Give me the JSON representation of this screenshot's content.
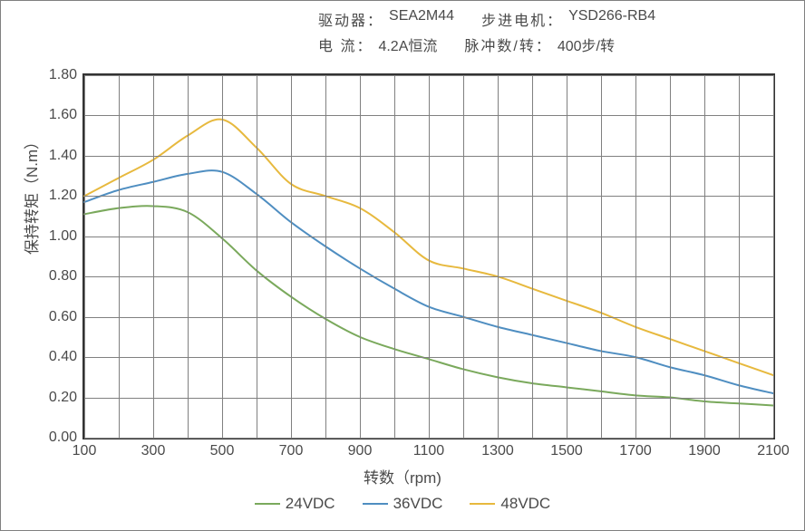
{
  "header": {
    "driver_label": "驱动器：",
    "driver_value": "SEA2M44",
    "motor_label": "步进电机：",
    "motor_value": "YSD266-RB4",
    "current_label": "电    流：",
    "current_value": "4.2A恒流",
    "pulse_label": "脉冲数/转：",
    "pulse_value": "400步/转"
  },
  "chart": {
    "type": "line",
    "background_color": "#ffffff",
    "border_color": "#333333",
    "grid_color": "#808080",
    "line_width": 2,
    "xlim": [
      100,
      2100
    ],
    "ylim": [
      0.0,
      1.8
    ],
    "xtick_positions": [
      100,
      300,
      500,
      700,
      900,
      1100,
      1300,
      1500,
      1700,
      1900,
      2100
    ],
    "xtick_labels": [
      "100",
      "300",
      "500",
      "700",
      "900",
      "1100",
      "1300",
      "1500",
      "1700",
      "1900",
      "2100"
    ],
    "ytick_positions": [
      0.0,
      0.2,
      0.4,
      0.6,
      0.8,
      1.0,
      1.2,
      1.4,
      1.6,
      1.8
    ],
    "ytick_labels": [
      "0.00",
      "0.20",
      "0.40",
      "0.60",
      "0.80",
      "1.00",
      "1.20",
      "1.40",
      "1.60",
      "1.80"
    ],
    "x_axis_title": "转数（rpm)",
    "y_axis_title": "保持转矩（N.m）",
    "x_gridlines": [
      100,
      200,
      300,
      400,
      500,
      600,
      700,
      800,
      900,
      1000,
      1100,
      1200,
      1300,
      1400,
      1500,
      1600,
      1700,
      1800,
      1900,
      2000,
      2100
    ],
    "y_gridlines": [
      0.0,
      0.2,
      0.4,
      0.6,
      0.8,
      1.0,
      1.2,
      1.4,
      1.6,
      1.8
    ],
    "series": [
      {
        "name": "24VDC",
        "color": "#7aa95c",
        "x": [
          100,
          200,
          300,
          400,
          500,
          600,
          700,
          800,
          900,
          1000,
          1100,
          1200,
          1300,
          1400,
          1500,
          1600,
          1700,
          1800,
          1900,
          2000,
          2100
        ],
        "y": [
          1.11,
          1.14,
          1.15,
          1.12,
          0.99,
          0.83,
          0.7,
          0.59,
          0.5,
          0.44,
          0.39,
          0.34,
          0.3,
          0.27,
          0.25,
          0.23,
          0.21,
          0.2,
          0.18,
          0.17,
          0.16
        ]
      },
      {
        "name": "36VDC",
        "color": "#4f8ec1",
        "x": [
          100,
          200,
          300,
          400,
          500,
          600,
          700,
          800,
          900,
          1000,
          1100,
          1200,
          1300,
          1400,
          1500,
          1600,
          1700,
          1800,
          1900,
          2000,
          2100
        ],
        "y": [
          1.17,
          1.23,
          1.27,
          1.31,
          1.32,
          1.21,
          1.07,
          0.95,
          0.84,
          0.74,
          0.65,
          0.6,
          0.55,
          0.51,
          0.47,
          0.43,
          0.4,
          0.35,
          0.31,
          0.26,
          0.22
        ]
      },
      {
        "name": "48VDC",
        "color": "#e7b93e",
        "x": [
          100,
          200,
          300,
          400,
          500,
          600,
          700,
          800,
          900,
          1000,
          1100,
          1200,
          1300,
          1400,
          1500,
          1600,
          1700,
          1800,
          1900,
          2000,
          2100
        ],
        "y": [
          1.2,
          1.29,
          1.38,
          1.5,
          1.58,
          1.44,
          1.26,
          1.2,
          1.14,
          1.02,
          0.88,
          0.84,
          0.8,
          0.74,
          0.68,
          0.62,
          0.55,
          0.49,
          0.43,
          0.37,
          0.31
        ]
      }
    ],
    "legend": {
      "items": [
        "24VDC",
        "36VDC",
        "48VDC"
      ]
    },
    "fontsize_tick": 16,
    "fontsize_axis_title": 17,
    "fontsize_legend": 17
  }
}
